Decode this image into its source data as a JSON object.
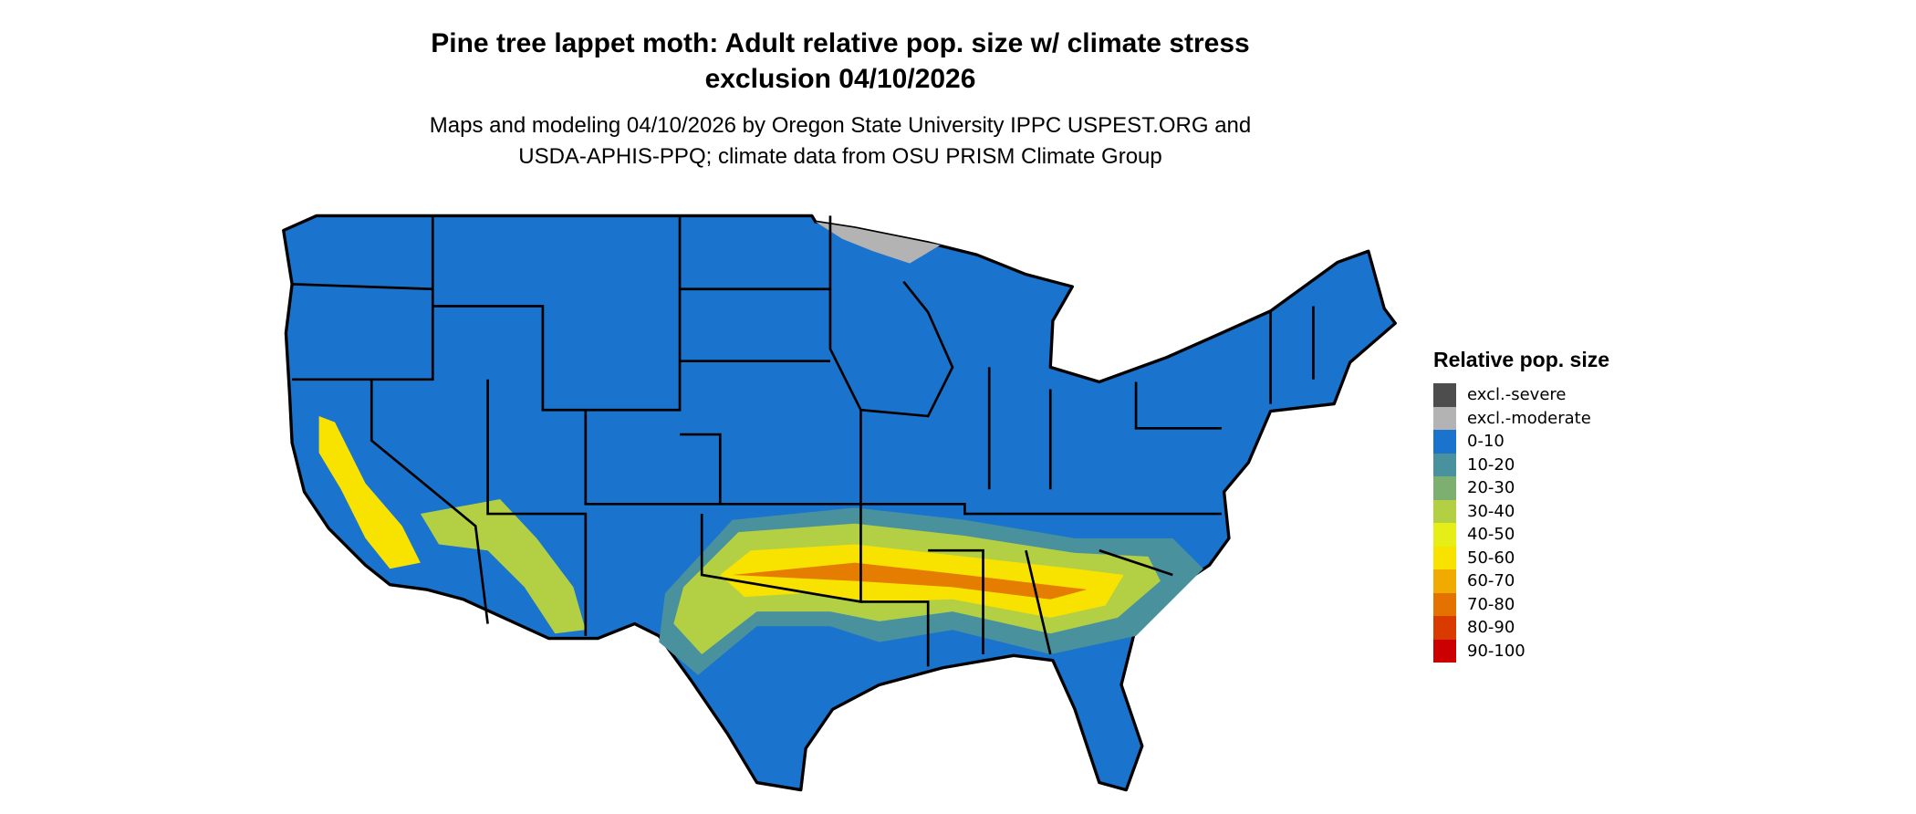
{
  "title": {
    "line1": "Pine tree lappet moth: Adult relative pop. size w/ climate stress",
    "line2": "exclusion 04/10/2026"
  },
  "subtitle": {
    "line1": "Maps and modeling 04/10/2026 by Oregon State University IPPC USPEST.ORG and",
    "line2": "USDA-APHIS-PPQ; climate data from OSU PRISM Climate Group"
  },
  "legend": {
    "title": "Relative pop. size",
    "items": [
      {
        "label": "excl.-severe",
        "color": "#4d4d4d"
      },
      {
        "label": "excl.-moderate",
        "color": "#b3b3b3"
      },
      {
        "label": "0-10",
        "color": "#1a73cc"
      },
      {
        "label": "10-20",
        "color": "#4a919e"
      },
      {
        "label": "20-30",
        "color": "#7daf71"
      },
      {
        "label": "30-40",
        "color": "#b3d044"
      },
      {
        "label": "40-50",
        "color": "#e5ef17"
      },
      {
        "label": "50-60",
        "color": "#f8e200"
      },
      {
        "label": "60-70",
        "color": "#f0aa00"
      },
      {
        "label": "70-80",
        "color": "#e37200"
      },
      {
        "label": "80-90",
        "color": "#d83a00"
      },
      {
        "label": "90-100",
        "color": "#cc0000"
      }
    ]
  }
}
